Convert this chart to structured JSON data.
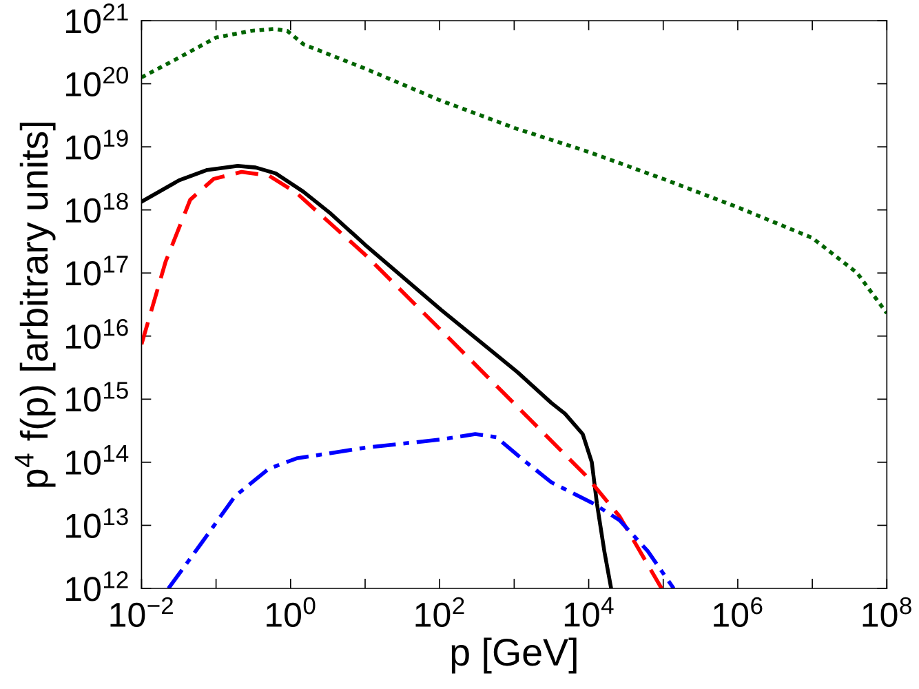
{
  "chart_data": {
    "type": "line",
    "xlabel": "p [GeV]",
    "ylabel": "p$^{4}$ f(p) [arbitrary units]",
    "log": "xy",
    "grid": false,
    "marker": "none",
    "xlim": [
      0.01,
      100000000.0
    ],
    "ylim": [
      1000000000000.0,
      1e+21
    ],
    "xticks": [
      {
        "value": 0.01,
        "label": "10$^{−2}$"
      },
      {
        "value": 0.1,
        "label": null
      },
      {
        "value": 1,
        "label": "10$^{0}$"
      },
      {
        "value": 10,
        "label": null
      },
      {
        "value": 100,
        "label": "10$^{2}$"
      },
      {
        "value": 1000,
        "label": null
      },
      {
        "value": 10000,
        "label": "10$^{4}$"
      },
      {
        "value": 100000,
        "label": null
      },
      {
        "value": 1000000,
        "label": "10$^{6}$"
      },
      {
        "value": 10000000,
        "label": null
      },
      {
        "value": 100000000,
        "label": "10$^{8}$"
      }
    ],
    "yticks": [
      {
        "value": 1000000000000.0,
        "label": "10$^{12}$"
      },
      {
        "value": 10000000000000.0,
        "label": "10$^{13}$"
      },
      {
        "value": 100000000000000.0,
        "label": "10$^{14}$"
      },
      {
        "value": 1000000000000000.0,
        "label": "10$^{15}$"
      },
      {
        "value": 1e+16,
        "label": "10$^{16}$"
      },
      {
        "value": 1e+17,
        "label": "10$^{17}$"
      },
      {
        "value": 1e+18,
        "label": "10$^{18}$"
      },
      {
        "value": 1e+19,
        "label": "10$^{19}$"
      },
      {
        "value": 1e+20,
        "label": "10$^{20}$"
      },
      {
        "value": 1e+21,
        "label": "10$^{21}$"
      }
    ],
    "series": [
      {
        "color": "#006400",
        "line_style": "dotted",
        "x": [
          0.01,
          0.03,
          0.1,
          0.3,
          0.6,
          0.9,
          1.5,
          10,
          100,
          1000,
          10000,
          100000,
          1000000,
          10000000,
          40000000,
          100000000
        ],
        "values": [
          1.26e+20,
          2.5e+20,
          5.4e+20,
          6.9e+20,
          7.4e+20,
          6.9e+20,
          4.2e+20,
          1.74e+20,
          5.5e+19,
          2e+19,
          8.3e+18,
          3.1e+18,
          1.1e+18,
          3.6e+17,
          1e+17,
          2.3e+16
        ]
      },
      {
        "color": "#000000",
        "line_style": "solid",
        "x": [
          0.01,
          0.032,
          0.076,
          0.195,
          0.34,
          0.63,
          1.48,
          3.47,
          10,
          105,
          1100,
          3160,
          4800,
          8300,
          11000,
          12900,
          16200,
          20000
        ],
        "values": [
          1.35e+18,
          2.95e+18,
          4.3e+18,
          5e+18,
          4.7e+18,
          3.8e+18,
          1.95e+18,
          8.7e+17,
          2.8e+17,
          2.6e+16,
          2700000000000000.0,
          870000000000000.0,
          590000000000000.0,
          280000000000000.0,
          100000000000000.0,
          22000000000000.0,
          3900000000000.0,
          1000000000000.0
        ]
      },
      {
        "color": "#ff0000",
        "line_style": "dashed",
        "x": [
          0.01,
          0.021,
          0.045,
          0.093,
          0.22,
          0.51,
          1.2,
          10,
          105,
          1100,
          9100,
          26000,
          95000
        ],
        "values": [
          7400000000000000.0,
          1.5e+17,
          1.45e+18,
          3.1e+18,
          4e+18,
          3.5e+18,
          1.86e+18,
          1.95e+17,
          1.23e+16,
          760000000000000.0,
          62000000000000.0,
          13800000000000.0,
          1000000000000.0
        ]
      },
      {
        "color": "#0000ff",
        "line_style": "dashdot",
        "x": [
          0.023,
          0.062,
          0.18,
          0.51,
          1.2,
          10,
          105,
          300,
          575,
          1350,
          3160,
          11700,
          26000,
          62000,
          138000
        ],
        "values": [
          1000000000000.0,
          5000000000000.0,
          29000000000000.0,
          79000000000000.0,
          115000000000000.0,
          170000000000000.0,
          230000000000000.0,
          280000000000000.0,
          250000000000000.0,
          107000000000000.0,
          48000000000000.0,
          22000000000000.0,
          12000000000000.0,
          3900000000000.0,
          1000000000000.0
        ]
      }
    ]
  }
}
